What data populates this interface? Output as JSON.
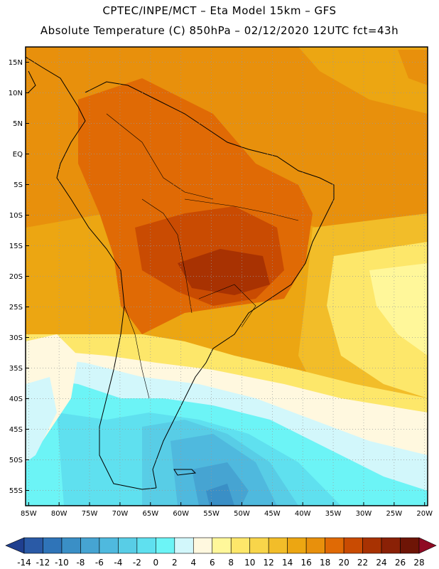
{
  "header": {
    "line1": "CPTEC/INPE/MCT –  Eta Model 15km – GFS",
    "line2": "Absolute Temperature (C) 850hPa – 02/12/2020 12UTC fct=43h"
  },
  "map": {
    "lat_labels": [
      "15N",
      "10N",
      "5N",
      "EQ",
      "5S",
      "10S",
      "15S",
      "20S",
      "25S",
      "30S",
      "35S",
      "40S",
      "45S",
      "50S",
      "55S"
    ],
    "lat_values": [
      15,
      10,
      5,
      0,
      -5,
      -10,
      -15,
      -20,
      -25,
      -30,
      -35,
      -40,
      -45,
      -50,
      -55
    ],
    "lon_labels": [
      "85W",
      "80W",
      "75W",
      "70W",
      "65W",
      "60W",
      "55W",
      "50W",
      "45W",
      "40W",
      "35W",
      "30W",
      "25W",
      "20W"
    ],
    "lon_values": [
      -85,
      -80,
      -75,
      -70,
      -65,
      -60,
      -55,
      -50,
      -45,
      -40,
      -35,
      -30,
      -25,
      -20
    ],
    "lon_range": [
      -85.5,
      -19.5
    ],
    "lat_range": [
      -57.5,
      17.5
    ]
  },
  "colorbar": {
    "labels": [
      "-14",
      "-12",
      "-10",
      "-8",
      "-6",
      "-4",
      "-2",
      "0",
      "2",
      "4",
      "6",
      "8",
      "10",
      "12",
      "14",
      "16",
      "18",
      "20",
      "22",
      "24",
      "26",
      "28"
    ],
    "colors": [
      "#1f3f8f",
      "#2a5aa6",
      "#2f74b8",
      "#3a8fc6",
      "#46a4d2",
      "#4fb9de",
      "#58cde6",
      "#5fe0ef",
      "#6cf4f6",
      "#d2f7fb",
      "#fff8df",
      "#fff79a",
      "#fde76a",
      "#f8d54a",
      "#f2bd29",
      "#eca612",
      "#e8900c",
      "#e06a05",
      "#c94b02",
      "#a83202",
      "#8a2106",
      "#6e1506",
      "#8f0a23"
    ]
  }
}
